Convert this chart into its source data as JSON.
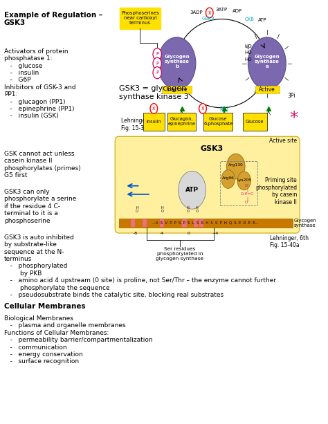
{
  "background_color": "#ffffff",
  "title_text": "Example of Regulation –\nGSK3",
  "block1": "Activators of protein\nphosphatase 1:\n   -   glucose\n   -   insulin\n   -   G6P\nInhibitors of GSK-3 and\nPP1:\n   -   glucagon (PP1)\n   -   epinephrine (PP1)\n   -   insulin (GSK)",
  "block2": "GSK cannot act unless\ncasein kinase II\nphosphorylates (primes)\nG5 first",
  "block3": "GSK3 can only\nphosphorylate a serine\nif the residue 4 C-\nterminal to it is a\nphosphoserine",
  "block4": "GSK3 is auto inhibited\nby substrate-like\nsequence at the N-\nterminus\n   -   phosphorylated\n        by PKB\n   -   amino acid 4 upstream (0 site) is proline, not Ser/Thr – the enzyme cannot further\n        phosphorylate the sequence\n   -   pseudosubstrate binds the catalytic site, blocking real substrates",
  "block5": "Cellular Membranes",
  "block6": "Biological Membranes\n   -   plasma and organelle membranes\nFunctions of Cellular Membranes:\n   -   permeability barrier/compartmentalization\n   -   communication\n   -   energy conservation\n   -   surface recognition"
}
